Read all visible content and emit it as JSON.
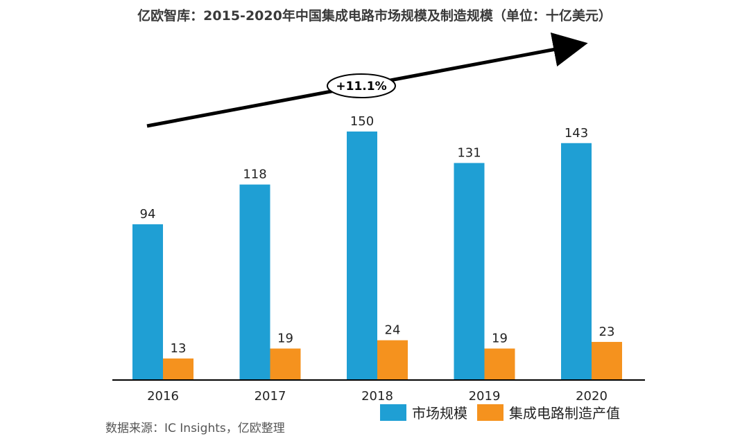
{
  "title": "亿欧智库：2015-2020年中国集成电路市场规模及制造规模（单位：十亿美元）",
  "source": "数据来源：IC Insights，亿欧整理",
  "growth_label": "+11.1%",
  "colors": {
    "market": "#1f9fd4",
    "manufacturing": "#f5921e",
    "arrow": "#000000",
    "axis": "#000000"
  },
  "chart_data": {
    "type": "bar",
    "categories": [
      "2016",
      "2017",
      "2018",
      "2019",
      "2020"
    ],
    "series": [
      {
        "name": "市场规模",
        "values": [
          94,
          118,
          150,
          131,
          143
        ]
      },
      {
        "name": "集成电路制造产值",
        "values": [
          13,
          19,
          24,
          19,
          23
        ]
      }
    ],
    "title": "亿欧智库：2015-2020年中国集成电路市场规模及制造规模（单位：十亿美元）",
    "xlabel": "",
    "ylabel": "",
    "ylim": [
      0,
      150
    ],
    "grid": false,
    "legend": "bottom-right",
    "data_labels": true,
    "annotation": "+11.1%"
  }
}
